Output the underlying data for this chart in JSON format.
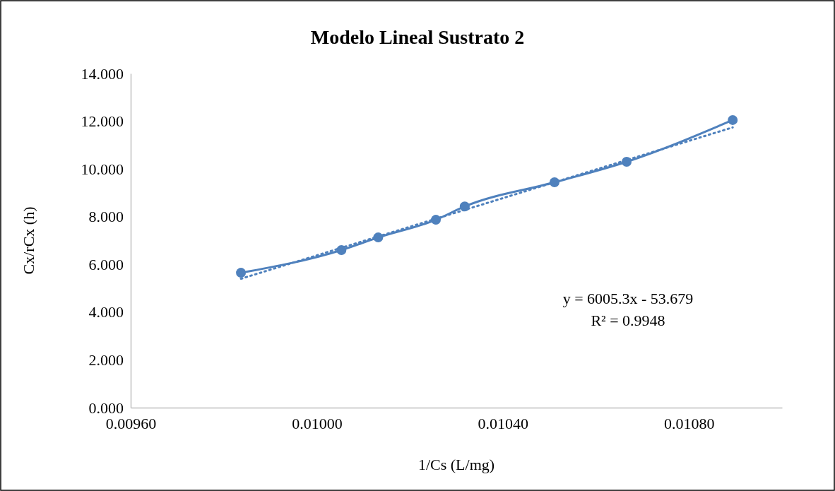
{
  "chart_data": {
    "type": "line",
    "title": "Modelo Lineal Sustrato 2",
    "xlabel": "1/Cs (L/mg)",
    "ylabel": "Cx/rCx (h)",
    "x": [
      0.009837,
      0.010053,
      0.010132,
      0.010256,
      0.010318,
      0.010511,
      0.010666,
      0.010894
    ],
    "series": [
      {
        "color": "#4f81bd",
        "values": [
          5.65,
          6.6,
          7.13,
          7.87,
          8.43,
          9.44,
          10.3,
          12.05
        ],
        "marker": "circle",
        "line_style": "solid"
      },
      {
        "type": "line",
        "color": "#4f81bd",
        "x": [
          0.009837,
          0.010894
        ],
        "values": [
          5.4,
          11.74
        ],
        "marker": "none",
        "line_style": "dotted"
      }
    ],
    "xlim": [
      0.0096,
      0.011
    ],
    "xticks": [
      {
        "value": 0.0096,
        "label": "0.00960"
      },
      {
        "value": 0.01,
        "label": "0.01000"
      },
      {
        "value": 0.0104,
        "label": "0.01040"
      },
      {
        "value": 0.0108,
        "label": "0.01080"
      }
    ],
    "ylim": [
      0,
      14
    ],
    "yticks": [
      {
        "value": 0,
        "label": "0.000"
      },
      {
        "value": 2,
        "label": "2.000"
      },
      {
        "value": 4,
        "label": "4.000"
      },
      {
        "value": 6,
        "label": "6.000"
      },
      {
        "value": 8,
        "label": "8.000"
      },
      {
        "value": 10,
        "label": "10.000"
      },
      {
        "value": 12,
        "label": "12.000"
      },
      {
        "value": 14,
        "label": "14.000"
      }
    ],
    "annotations": [
      "y = 6005.3x - 53.679",
      "R² = 0.9948"
    ],
    "grid": false
  }
}
